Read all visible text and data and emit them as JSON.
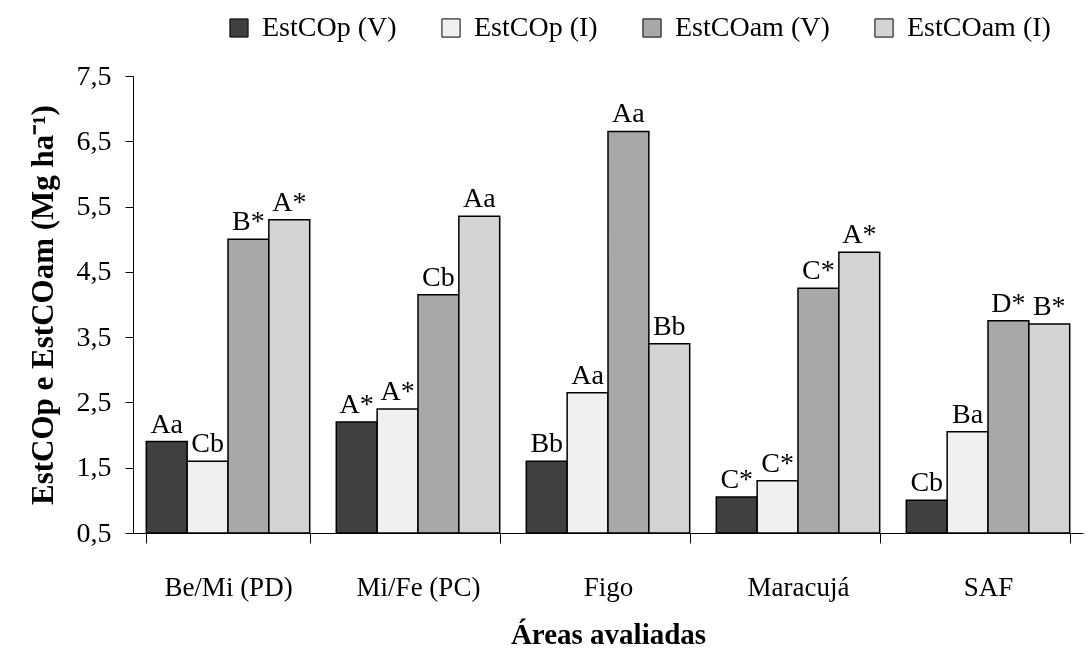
{
  "chart_data": {
    "type": "bar",
    "categories": [
      "Be/Mi (PD)",
      "Mi/Fe (PC)",
      "Figo",
      "Maracujá",
      "SAF"
    ],
    "xlabel": "Áreas avaliadas",
    "ylabel": "EstCOp e EstCOam (Mg ha⁻¹)",
    "ylim": [
      0.5,
      7.5
    ],
    "yticks": [
      {
        "value": 0.5,
        "label": "0,5"
      },
      {
        "value": 1.5,
        "label": "1,5"
      },
      {
        "value": 2.5,
        "label": "2,5"
      },
      {
        "value": 3.5,
        "label": "3,5"
      },
      {
        "value": 4.5,
        "label": "4,5"
      },
      {
        "value": 5.5,
        "label": "5,5"
      },
      {
        "value": 6.5,
        "label": "6,5"
      },
      {
        "value": 7.5,
        "label": "7,5"
      }
    ],
    "legend": "top",
    "series": [
      {
        "name": "EstCOp (V)",
        "color": "#404040",
        "values": [
          1.9,
          2.2,
          1.6,
          1.05,
          1.0
        ],
        "value_labels": [
          "Aa",
          "A*",
          "Bb",
          "C*",
          "Cb"
        ]
      },
      {
        "name": "EstCOp (I)",
        "color": "#f0f0f0",
        "values": [
          1.6,
          2.4,
          2.65,
          1.3,
          2.05
        ],
        "value_labels": [
          "Cb",
          "A*",
          "Aa",
          "C*",
          "Ba"
        ]
      },
      {
        "name": "EstCOam (V)",
        "color": "#a8a8a8",
        "values": [
          5.0,
          4.15,
          6.65,
          4.25,
          3.75
        ],
        "value_labels": [
          "B*",
          "Cb",
          "Aa",
          "C*",
          "D*"
        ]
      },
      {
        "name": "EstCOam (I)",
        "color": "#d4d4d4",
        "values": [
          5.3,
          5.35,
          3.4,
          4.8,
          3.7
        ],
        "value_labels": [
          "A*",
          "Aa",
          "Bb",
          "A*",
          "B*"
        ]
      }
    ]
  }
}
